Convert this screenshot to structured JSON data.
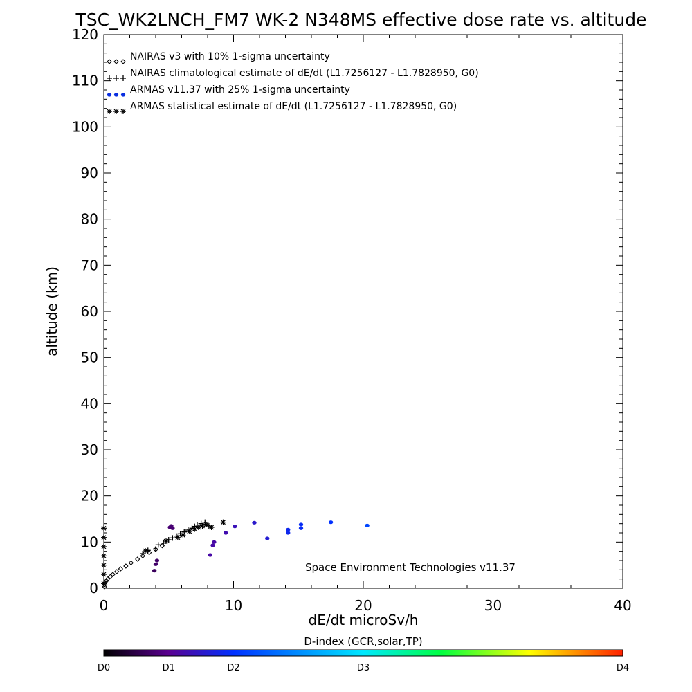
{
  "chart_data": {
    "type": "scatter",
    "title": "TSC_WK2LNCH_FM7 WK-2 N348MS effective dose rate vs. altitude",
    "xlabel": "dE/dt microSv/h",
    "ylabel": "altitude (km)",
    "xlim": [
      0,
      40
    ],
    "ylim": [
      0,
      120
    ],
    "x_ticks": [
      "0",
      "10",
      "20",
      "30",
      "40"
    ],
    "y_ticks": [
      "0",
      "10",
      "20",
      "30",
      "40",
      "50",
      "60",
      "70",
      "80",
      "90",
      "100",
      "110",
      "120"
    ],
    "legend_position": "top-left",
    "legend": [
      {
        "marker": "diamond",
        "color": "#000000",
        "label": "NAIRAS v3 with 10% 1-sigma uncertainty"
      },
      {
        "marker": "plus",
        "color": "#000000",
        "label": "NAIRAS climatological estimate of dE/dt (L1.7256127 - L1.7828950, G0)"
      },
      {
        "marker": "dot",
        "color": "#0a2fe0",
        "label": "ARMAS v11.37 with 25% 1-sigma uncertainty"
      },
      {
        "marker": "asterisk",
        "color": "#000000",
        "label": "ARMAS statistical estimate of dE/dt (L1.7256127 - L1.7828950, G0)"
      }
    ],
    "annotation": "Space Environment Technologies v11.37",
    "colorbar": {
      "title": "D-index (GCR,solar,TP)",
      "labels": [
        {
          "text": "D0",
          "pos": 0.0
        },
        {
          "text": "D1",
          "pos": 0.125
        },
        {
          "text": "D2",
          "pos": 0.25
        },
        {
          "text": "D3",
          "pos": 0.5
        },
        {
          "text": "D4",
          "pos": 1.0
        }
      ]
    },
    "series": [
      {
        "name": "NAIRAS v3 with 10% 1-sigma uncertainty",
        "marker": "diamond",
        "points": [
          [
            0.05,
            0.3
          ],
          [
            0.08,
            0.8
          ],
          [
            0.1,
            1.2
          ],
          [
            0.2,
            1.6
          ],
          [
            0.3,
            2.0
          ],
          [
            0.5,
            2.5
          ],
          [
            0.7,
            3.0
          ],
          [
            1.0,
            3.6
          ],
          [
            1.3,
            4.2
          ],
          [
            1.7,
            4.8
          ],
          [
            2.1,
            5.5
          ],
          [
            2.6,
            6.3
          ],
          [
            3.0,
            7.0
          ],
          [
            3.5,
            7.7
          ],
          [
            4.0,
            8.4
          ],
          [
            4.5,
            9.2
          ]
        ]
      },
      {
        "name": "NAIRAS climatological estimate of dE/dt (L1.7256127 - L1.7828950, G0)",
        "marker": "plus",
        "points": [
          [
            3.0,
            7.5
          ],
          [
            3.4,
            8.2
          ],
          [
            4.0,
            8.5
          ],
          [
            4.2,
            9.4
          ],
          [
            4.6,
            9.8
          ],
          [
            5.0,
            10.5
          ],
          [
            5.3,
            10.9
          ],
          [
            5.6,
            11.3
          ],
          [
            5.9,
            11.8
          ],
          [
            6.2,
            12.2
          ],
          [
            6.5,
            12.6
          ],
          [
            6.8,
            13.0
          ],
          [
            7.0,
            13.4
          ],
          [
            7.2,
            13.7
          ],
          [
            7.5,
            14.0
          ],
          [
            7.8,
            14.3
          ],
          [
            8.1,
            13.5
          ]
        ]
      },
      {
        "name": "ARMAS v11.37 with 25% 1-sigma uncertainty",
        "marker": "dot",
        "points": [
          {
            "x": 3.9,
            "y": 3.8,
            "c": 0.08
          },
          {
            "x": 4.0,
            "y": 5.2,
            "c": 0.09
          },
          {
            "x": 4.1,
            "y": 6.0,
            "c": 0.09
          },
          {
            "x": 5.1,
            "y": 13.2,
            "c": 0.1
          },
          {
            "x": 5.2,
            "y": 13.5,
            "c": 0.1
          },
          {
            "x": 5.3,
            "y": 13.0,
            "c": 0.1
          },
          {
            "x": 8.2,
            "y": 7.2,
            "c": 0.15
          },
          {
            "x": 8.4,
            "y": 9.3,
            "c": 0.15
          },
          {
            "x": 8.5,
            "y": 10.0,
            "c": 0.15
          },
          {
            "x": 9.4,
            "y": 12.0,
            "c": 0.16
          },
          {
            "x": 10.1,
            "y": 13.4,
            "c": 0.17
          },
          {
            "x": 11.6,
            "y": 14.2,
            "c": 0.19
          },
          {
            "x": 12.6,
            "y": 10.8,
            "c": 0.2
          },
          {
            "x": 14.2,
            "y": 12.0,
            "c": 0.23
          },
          {
            "x": 14.2,
            "y": 12.7,
            "c": 0.23
          },
          {
            "x": 15.2,
            "y": 13.0,
            "c": 0.24
          },
          {
            "x": 15.2,
            "y": 13.8,
            "c": 0.24
          },
          {
            "x": 17.5,
            "y": 14.3,
            "c": 0.25
          },
          {
            "x": 20.3,
            "y": 13.6,
            "c": 0.28
          }
        ]
      },
      {
        "name": "ARMAS statistical estimate of dE/dt (L1.7256127 - L1.7828950, G0)",
        "marker": "asterisk",
        "points": [
          [
            0.0,
            1.0
          ],
          [
            0.0,
            3.0
          ],
          [
            0.0,
            5.0
          ],
          [
            0.0,
            7.0
          ],
          [
            0.0,
            9.0
          ],
          [
            0.0,
            11.0
          ],
          [
            0.0,
            13.0
          ],
          [
            3.2,
            8.1
          ],
          [
            4.8,
            10.2
          ],
          [
            5.7,
            11.0
          ],
          [
            6.1,
            11.5
          ],
          [
            6.6,
            12.3
          ],
          [
            7.0,
            12.8
          ],
          [
            7.3,
            13.2
          ],
          [
            7.6,
            13.5
          ],
          [
            7.9,
            13.8
          ],
          [
            8.3,
            13.2
          ],
          [
            9.2,
            14.3
          ]
        ]
      }
    ]
  }
}
